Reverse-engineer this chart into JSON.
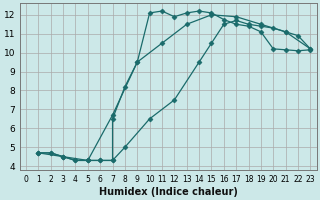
{
  "xlabel": "Humidex (Indice chaleur)",
  "bg_color": "#cce8e8",
  "line_color": "#1a6b6b",
  "grid_color": "#aaaaaa",
  "xlim": [
    -0.5,
    23.5
  ],
  "ylim": [
    3.8,
    12.6
  ],
  "xticks": [
    0,
    1,
    2,
    3,
    4,
    5,
    6,
    7,
    8,
    9,
    10,
    11,
    12,
    13,
    14,
    15,
    16,
    17,
    18,
    19,
    20,
    21,
    22,
    23
  ],
  "yticks": [
    4,
    5,
    6,
    7,
    8,
    9,
    10,
    11,
    12
  ],
  "line1_x": [
    1,
    2,
    3,
    4,
    5,
    6,
    7,
    7,
    8,
    9,
    10,
    11,
    12,
    13,
    14,
    15,
    16,
    17,
    18,
    19,
    20,
    21,
    22,
    23
  ],
  "line1_y": [
    4.7,
    4.7,
    4.5,
    4.3,
    4.3,
    4.3,
    4.3,
    6.5,
    8.2,
    9.5,
    12.1,
    12.2,
    11.9,
    12.1,
    12.2,
    12.1,
    11.75,
    11.5,
    11.4,
    11.1,
    10.2,
    10.15,
    10.1,
    10.15
  ],
  "line2_x": [
    1,
    2,
    3,
    4,
    5,
    6,
    7,
    8,
    10,
    12,
    14,
    15,
    16,
    17,
    18,
    19,
    20,
    21,
    22,
    23
  ],
  "line2_y": [
    4.7,
    4.7,
    4.5,
    4.3,
    4.3,
    4.3,
    4.3,
    5.0,
    6.5,
    7.5,
    9.5,
    10.5,
    11.5,
    11.7,
    11.5,
    11.4,
    11.3,
    11.1,
    10.9,
    10.2
  ],
  "line3_x": [
    1,
    3,
    5,
    7,
    9,
    11,
    13,
    15,
    17,
    19,
    21,
    23
  ],
  "line3_y": [
    4.7,
    4.5,
    4.3,
    6.7,
    9.5,
    10.5,
    11.5,
    12.0,
    11.9,
    11.5,
    11.1,
    10.2
  ],
  "marker": "D",
  "markersize": 2.5,
  "linewidth": 0.9,
  "xlabel_fontsize": 7,
  "tick_fontsize_x": 5.5,
  "tick_fontsize_y": 6.5
}
